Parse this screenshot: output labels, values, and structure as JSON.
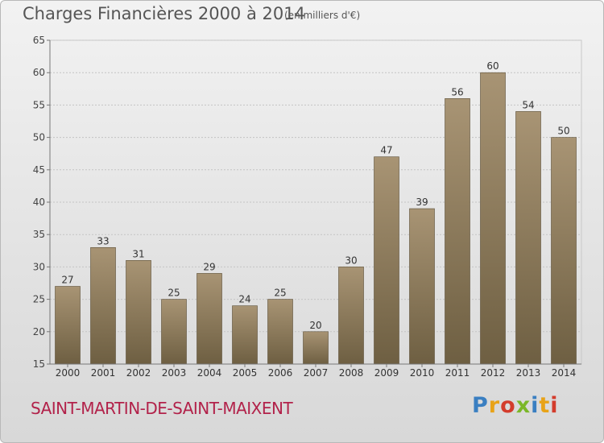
{
  "header": {
    "title": "Charges Financières 2000 à 2014",
    "subtitle": "(en milliers d'€)"
  },
  "footer": {
    "commune": "SAINT-MARTIN-DE-SAINT-MAIXENT",
    "logo_letters": [
      "P",
      "r",
      "o",
      "x",
      "i",
      "t",
      "i"
    ],
    "logo_colors": [
      "#3a7fc1",
      "#e8a318",
      "#d33c2c",
      "#7bb728",
      "#3a7fc1",
      "#e8a318",
      "#d33c2c"
    ]
  },
  "chart_data": {
    "type": "bar",
    "categories": [
      "2000",
      "2001",
      "2002",
      "2003",
      "2004",
      "2005",
      "2006",
      "2007",
      "2008",
      "2009",
      "2010",
      "2011",
      "2012",
      "2013",
      "2014"
    ],
    "values": [
      27,
      33,
      31,
      25,
      29,
      24,
      25,
      20,
      30,
      47,
      39,
      56,
      60,
      54,
      50
    ],
    "ylim": [
      15,
      65
    ],
    "yticks": [
      15,
      20,
      25,
      30,
      35,
      40,
      45,
      50,
      55,
      60,
      65
    ],
    "grid": true,
    "bar_color_top": "#a89474",
    "bar_color_bottom": "#6e5f42"
  }
}
